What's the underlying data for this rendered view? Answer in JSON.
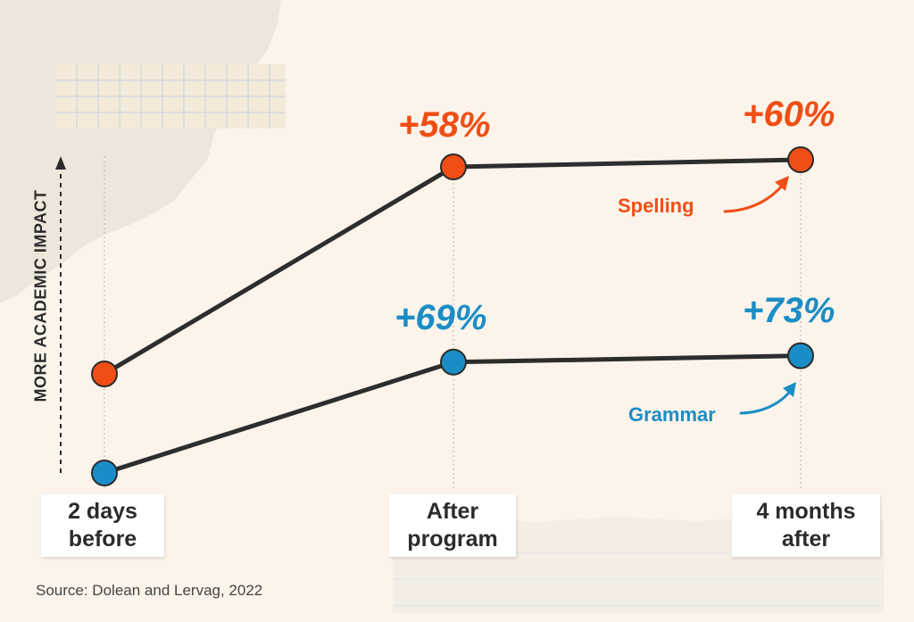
{
  "colors": {
    "spelling": "#f04e15",
    "grammar": "#1b8dc6",
    "line": "#2d2d2d",
    "background": "#fcf4ea"
  },
  "y_axis_label": "MORE ACADEMIC IMPACT",
  "source": "Source: Dolean and Lervag, 2022",
  "chart_data": {
    "type": "line",
    "categories": [
      "2 days before",
      "After program",
      "4 months after"
    ],
    "category_lines": [
      [
        "2 days",
        "before"
      ],
      [
        "After",
        "program"
      ],
      [
        "4 months",
        "after"
      ]
    ],
    "ylabel": "MORE ACADEMIC IMPACT",
    "series": [
      {
        "name": "Spelling",
        "values": [
          0,
          58,
          60
        ],
        "data_labels": [
          "",
          "+58%",
          "+60%"
        ]
      },
      {
        "name": "Grammar",
        "values": [
          0,
          69,
          73
        ],
        "data_labels": [
          "",
          "+69%",
          "+73%"
        ]
      }
    ]
  }
}
